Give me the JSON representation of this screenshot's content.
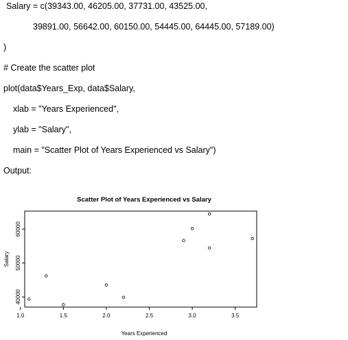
{
  "code": {
    "line1": "Salary = c(39343.00, 46205.00, 37731.00, 43525.00,",
    "line2": "39891.00, 56642.00, 60150.00, 54445.00, 64445.00, 57189.00)",
    "line3": ")",
    "comment": "# Create the scatter plot",
    "plot_call": "plot(data$Years_Exp, data$Salary,",
    "xlab_arg": "xlab = \"Years Experienced\",",
    "ylab_arg": "ylab = \"Salary\",",
    "main_arg": "main = \"Scatter Plot of Years Experienced vs Salary\")"
  },
  "output_label": "Output:",
  "chart_data": {
    "type": "scatter",
    "title": "Scatter Plot of Years Experienced vs Salary",
    "xlabel": "Years Experienced",
    "ylabel": "Salary",
    "x": [
      1.1,
      1.3,
      1.5,
      2.0,
      2.2,
      2.9,
      3.0,
      3.2,
      3.2,
      3.7
    ],
    "y": [
      39343,
      46205,
      37731,
      43525,
      39891,
      56642,
      60150,
      54445,
      64445,
      57189
    ],
    "xlim": [
      1.05,
      3.75
    ],
    "ylim": [
      37000,
      65300
    ],
    "x_ticks": [
      1.0,
      1.5,
      2.0,
      2.5,
      3.0,
      3.5
    ],
    "x_tick_labels": [
      "1.0",
      "1.5",
      "2.0",
      "2.5",
      "3.0",
      "3.5"
    ],
    "y_ticks": [
      40000,
      50000,
      60000
    ],
    "y_tick_labels": [
      "40000",
      "50000",
      "60000"
    ],
    "grid": false,
    "marker": "open-circle"
  }
}
